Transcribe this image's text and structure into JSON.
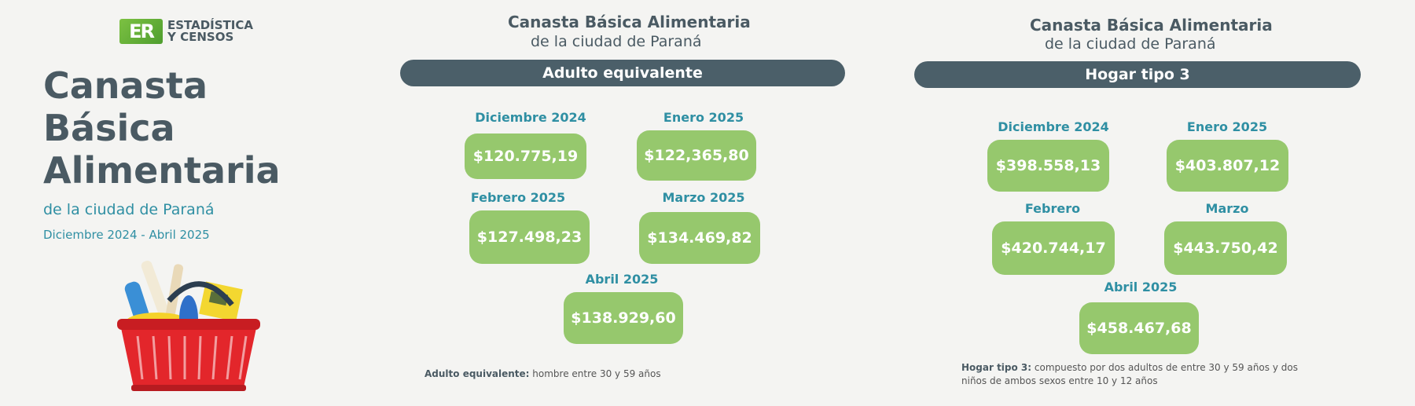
{
  "brand": {
    "logo": "ER",
    "line1": "ESTADÍSTICA",
    "line2": "Y CENSOS"
  },
  "title": {
    "line1": "Canasta",
    "line2": "Básica",
    "line3": "Alimentaria"
  },
  "subtitle": "de la ciudad de Paraná",
  "period": "Diciembre 2024 -  Abril 2025",
  "adulto": {
    "heading": "Canasta Básica Alimentaria",
    "subheading": "de la ciudad de Paraná",
    "pill": "Adulto equivalente",
    "items": [
      {
        "month": "Diciembre 2024",
        "value": "$120.775,19"
      },
      {
        "month": "Enero 2025",
        "value": "$122,365,80"
      },
      {
        "month": "Febrero 2025",
        "value": "$127.498,23"
      },
      {
        "month": "Marzo 2025",
        "value": "$134.469,82"
      },
      {
        "month": "Abril 2025",
        "value": "$138.929,60"
      }
    ],
    "note_label": "Adulto equivalente:",
    "note_text": " hombre entre 30 y 59 años"
  },
  "hogar": {
    "heading": "Canasta Básica Alimentaria",
    "subheading": "de la ciudad de Paraná",
    "pill": "Hogar tipo 3",
    "items": [
      {
        "month": "Diciembre 2024",
        "value": "$398.558,13"
      },
      {
        "month": "Enero 2025",
        "value": "$403.807,12"
      },
      {
        "month": "Febrero",
        "value": "$420.744,17"
      },
      {
        "month": "Marzo",
        "value": "$443.750,42"
      },
      {
        "month": "Abril 2025",
        "value": "$458.467,68"
      }
    ],
    "note_label": "Hogar tipo 3:",
    "note_text": " compuesto por dos adultos de entre 30 y 59 años y dos niños de ambos sexos entre 10 y 12 años"
  },
  "colors": {
    "accent": "#2f8fa3",
    "dark": "#4b5f69",
    "green": "#96c86d"
  },
  "icons": {
    "basket": "shopping-basket-icon",
    "logo": "er-logo-icon"
  }
}
